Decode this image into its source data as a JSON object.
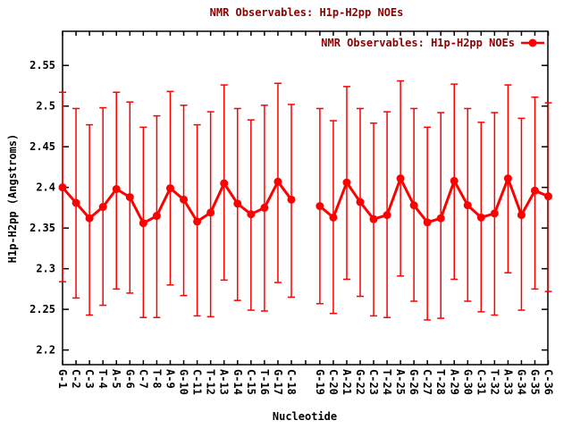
{
  "chart_data": {
    "type": "line",
    "title": "NMR Observables: H1p-H2pp NOEs",
    "legend_label": "NMR Observables: H1p-H2pp NOEs",
    "legend_position": "top-right-inside",
    "xlabel": "Nucleotide",
    "ylabel": "H1p-H2pp (Angstroms)",
    "ylim": [
      2.182,
      2.592
    ],
    "ytick_values": [
      2.2,
      2.25,
      2.3,
      2.35,
      2.4,
      2.45,
      2.5,
      2.55
    ],
    "ytick_labels": [
      "2.2",
      "2.25",
      "2.3",
      "2.35",
      "2.4",
      "2.45",
      "2.5",
      "2.55"
    ],
    "grid": false,
    "categories": [
      "G-1",
      "C-2",
      "C-3",
      "T-4",
      "A-5",
      "G-6",
      "C-7",
      "T-8",
      "A-9",
      "G-10",
      "C-11",
      "T-12",
      "A-13",
      "G-14",
      "C-15",
      "T-16",
      "G-17",
      "C-18",
      "G-19",
      "C-20",
      "A-21",
      "G-22",
      "C-23",
      "T-24",
      "A-25",
      "G-26",
      "C-27",
      "T-28",
      "A-29",
      "G-30",
      "C-31",
      "T-32",
      "A-33",
      "G-34",
      "G-35",
      "C-36"
    ],
    "series": [
      {
        "name": "NMR Observables: H1p-H2pp NOEs",
        "values": [
          2.4,
          2.381,
          2.362,
          2.376,
          2.398,
          2.388,
          2.356,
          2.365,
          2.399,
          2.385,
          2.358,
          2.369,
          2.405,
          2.38,
          2.367,
          2.375,
          2.407,
          2.385,
          2.377,
          2.363,
          2.406,
          2.382,
          2.361,
          2.366,
          2.411,
          2.378,
          2.357,
          2.362,
          2.408,
          2.378,
          2.363,
          2.368,
          2.411,
          2.366,
          2.396,
          2.389
        ],
        "err_high": [
          2.517,
          2.497,
          2.477,
          2.498,
          2.517,
          2.505,
          2.474,
          2.488,
          2.518,
          2.501,
          2.477,
          2.493,
          2.526,
          2.497,
          2.483,
          2.501,
          2.528,
          2.502,
          2.497,
          2.482,
          2.524,
          2.497,
          2.479,
          2.493,
          2.531,
          2.497,
          2.474,
          2.492,
          2.527,
          2.497,
          2.48,
          2.492,
          2.526,
          2.485,
          2.511,
          2.504
        ],
        "err_low": [
          2.284,
          2.264,
          2.243,
          2.255,
          2.275,
          2.27,
          2.24,
          2.24,
          2.28,
          2.267,
          2.242,
          2.241,
          2.286,
          2.261,
          2.249,
          2.248,
          2.283,
          2.265,
          2.257,
          2.245,
          2.287,
          2.266,
          2.242,
          2.24,
          2.291,
          2.26,
          2.237,
          2.239,
          2.287,
          2.26,
          2.247,
          2.243,
          2.295,
          2.249,
          2.275,
          2.272
        ]
      }
    ],
    "segment_break_after_index": 17,
    "colors": {
      "series": "#ff0000",
      "title_text": "#8b0000",
      "legend_text": "#8b0000",
      "axis_text": "#000000",
      "border": "#000000",
      "background": "#ffffff"
    }
  }
}
